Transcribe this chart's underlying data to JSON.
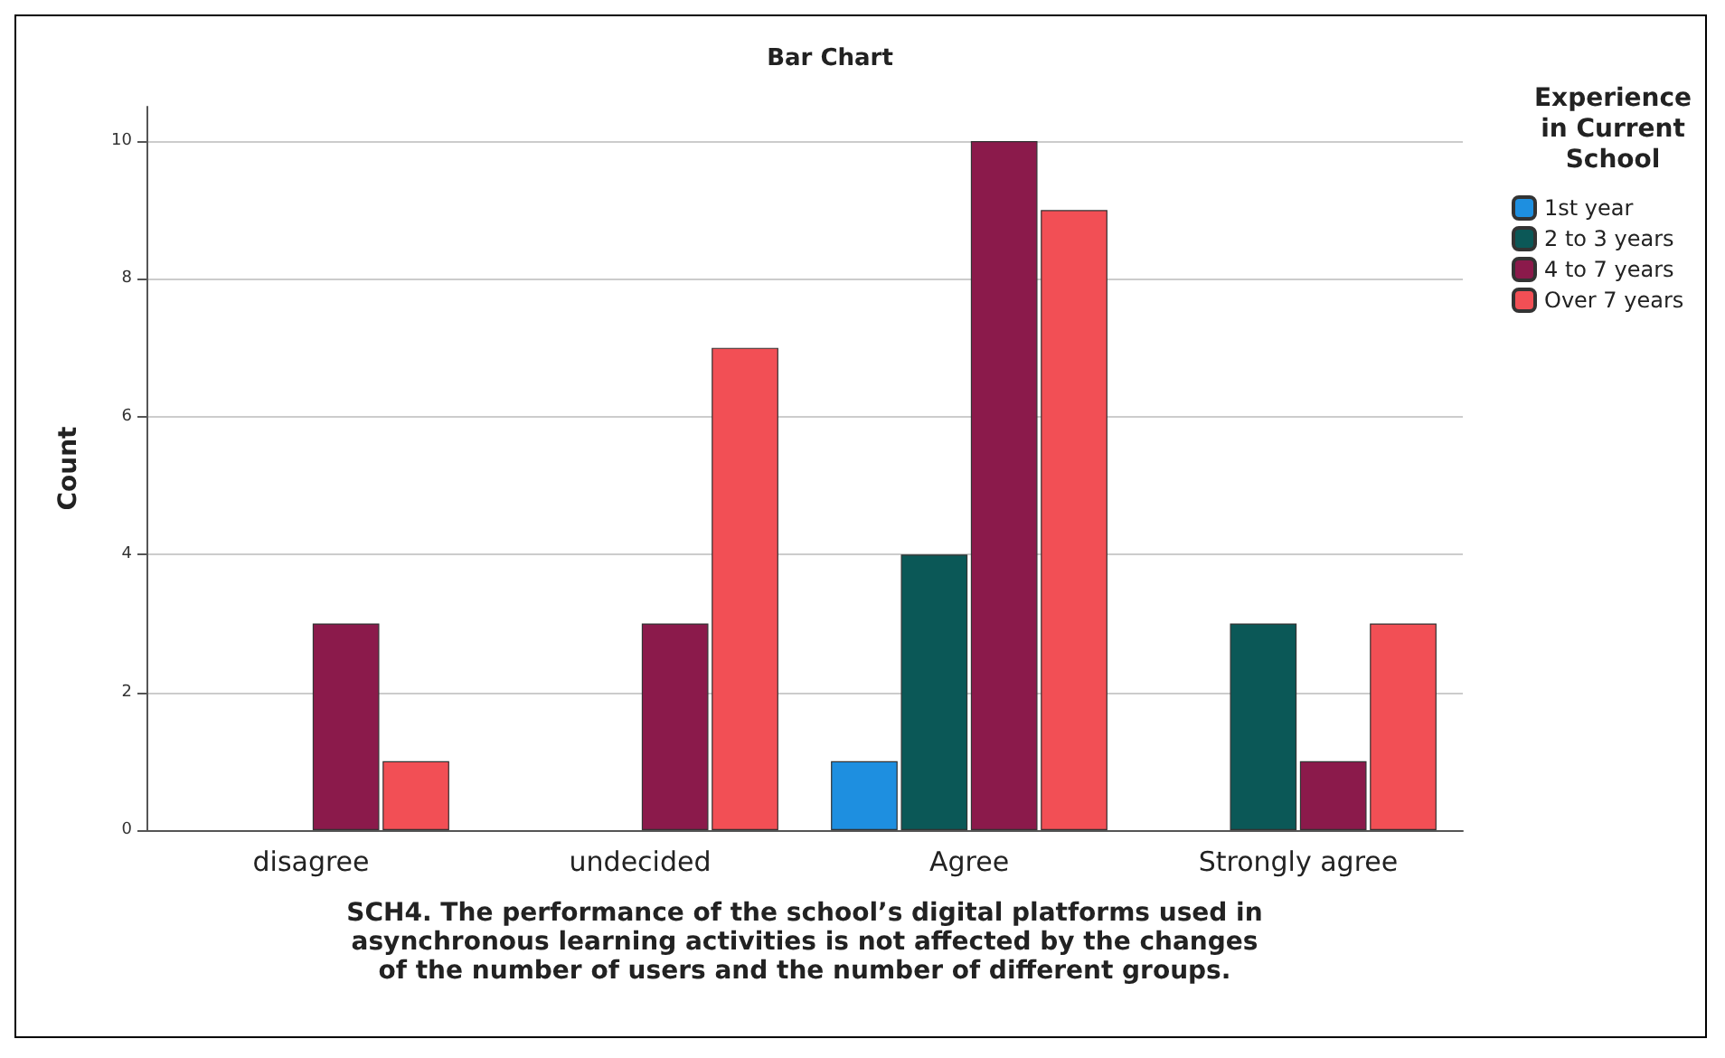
{
  "chart_data": {
    "type": "bar",
    "title": "Bar Chart",
    "xlabel": "SCH4. The performance of the school’s digital platforms used in\nasynchronous learning activities is not affected by the changes\nof the number of users and the number of different groups.",
    "ylabel": "Count",
    "legend_title": "Experience\nin Current\nSchool",
    "categories": [
      "disagree",
      "undecided",
      "Agree",
      "Strongly agree"
    ],
    "series": [
      {
        "name": "1st year",
        "color": "#1e8fe0",
        "values": [
          null,
          null,
          1,
          null
        ]
      },
      {
        "name": "2 to 3 years",
        "color": "#0b5857",
        "values": [
          null,
          null,
          4,
          3
        ]
      },
      {
        "name": "4 to 7 years",
        "color": "#8b1a4b",
        "values": [
          3,
          3,
          10,
          1
        ]
      },
      {
        "name": "Over 7 years",
        "color": "#f24f55",
        "values": [
          1,
          7,
          9,
          3
        ]
      }
    ],
    "ylim": [
      0,
      10.5
    ],
    "yticks": [
      0,
      2,
      4,
      6,
      8,
      10
    ],
    "grid": "y",
    "legend": "top right"
  }
}
